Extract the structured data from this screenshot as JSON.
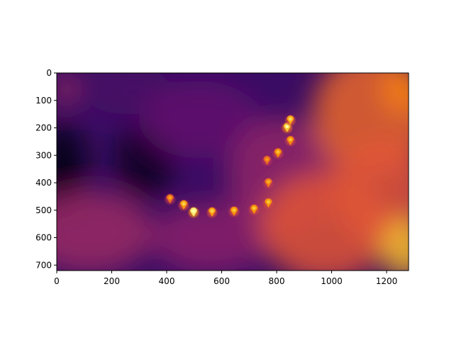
{
  "chart_data": {
    "type": "heatmap",
    "title": "",
    "xlabel": "",
    "ylabel": "",
    "xlim": [
      0,
      1280
    ],
    "ylim": [
      720,
      0
    ],
    "y_inverted": true,
    "colormap": "inferno",
    "grid": false,
    "xticks": [
      0,
      200,
      400,
      600,
      800,
      1000,
      1200
    ],
    "yticks": [
      0,
      100,
      200,
      300,
      400,
      500,
      600,
      700
    ],
    "blobs": [
      {
        "x": 20,
        "y": 350,
        "intensity": 0.02,
        "rx": 90,
        "ry": 170
      },
      {
        "x": 320,
        "y": 320,
        "intensity": 0.05,
        "rx": 110,
        "ry": 140
      },
      {
        "x": 250,
        "y": 60,
        "intensity": 0.22,
        "rx": 160,
        "ry": 90
      },
      {
        "x": 120,
        "y": 580,
        "intensity": 0.42,
        "rx": 230,
        "ry": 150
      },
      {
        "x": 30,
        "y": 60,
        "intensity": 0.45,
        "rx": 40,
        "ry": 60
      },
      {
        "x": 520,
        "y": 170,
        "intensity": 0.28,
        "rx": 220,
        "ry": 140
      },
      {
        "x": 560,
        "y": 600,
        "intensity": 0.38,
        "rx": 220,
        "ry": 130
      },
      {
        "x": 820,
        "y": 380,
        "intensity": 0.4,
        "rx": 200,
        "ry": 220
      },
      {
        "x": 980,
        "y": 560,
        "intensity": 0.62,
        "rx": 240,
        "ry": 200
      },
      {
        "x": 1150,
        "y": 150,
        "intensity": 0.66,
        "rx": 220,
        "ry": 230
      },
      {
        "x": 1180,
        "y": 430,
        "intensity": 0.62,
        "rx": 180,
        "ry": 200
      },
      {
        "x": 1270,
        "y": 640,
        "intensity": 0.86,
        "rx": 90,
        "ry": 110
      },
      {
        "x": 1260,
        "y": 60,
        "intensity": 0.72,
        "rx": 80,
        "ry": 90
      }
    ],
    "markers": [
      {
        "x": 412,
        "y": 460,
        "intensity": 0.68
      },
      {
        "x": 462,
        "y": 482,
        "intensity": 0.78
      },
      {
        "x": 498,
        "y": 508,
        "intensity": 0.95
      },
      {
        "x": 565,
        "y": 508,
        "intensity": 0.78
      },
      {
        "x": 645,
        "y": 505,
        "intensity": 0.76
      },
      {
        "x": 718,
        "y": 498,
        "intensity": 0.76
      },
      {
        "x": 770,
        "y": 475,
        "intensity": 0.76
      },
      {
        "x": 770,
        "y": 402,
        "intensity": 0.7
      },
      {
        "x": 765,
        "y": 320,
        "intensity": 0.66
      },
      {
        "x": 805,
        "y": 293,
        "intensity": 0.74
      },
      {
        "x": 850,
        "y": 248,
        "intensity": 0.74
      },
      {
        "x": 838,
        "y": 200,
        "intensity": 0.88
      },
      {
        "x": 850,
        "y": 173,
        "intensity": 0.8
      }
    ]
  }
}
